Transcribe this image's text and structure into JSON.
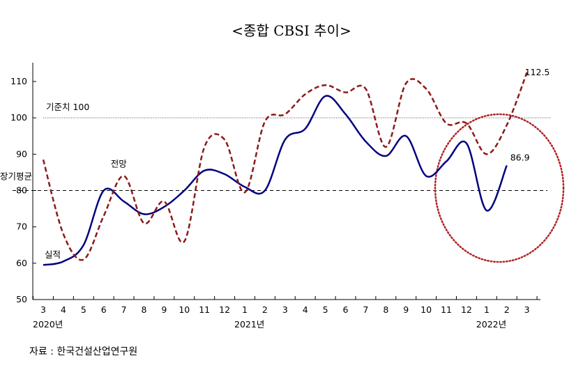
{
  "chart_data": {
    "type": "line",
    "title": "<종합 CBSI 추이>",
    "source": "자료 : 한국건설산업연구원",
    "categories": [
      "3",
      "4",
      "5",
      "6",
      "7",
      "8",
      "9",
      "10",
      "11",
      "12",
      "1",
      "2",
      "3",
      "4",
      "5",
      "6",
      "7",
      "8",
      "9",
      "10",
      "11",
      "12",
      "1",
      "2",
      "3"
    ],
    "year_labels": [
      {
        "index": 0,
        "label": "2020년"
      },
      {
        "index": 10,
        "label": "2021년"
      },
      {
        "index": 22,
        "label": "2022년"
      }
    ],
    "ylim": [
      50,
      110
    ],
    "yticks": [
      50,
      60,
      70,
      80,
      90,
      100,
      110
    ],
    "series": [
      {
        "name": "실적",
        "color": "#000080",
        "style": "solid",
        "values": [
          59.5,
          60.5,
          65,
          80,
          77,
          73.5,
          75.5,
          80,
          85.5,
          84.5,
          81,
          80,
          94,
          97,
          106,
          101,
          93.5,
          89.5,
          95,
          84,
          88,
          93,
          74.5,
          86.9,
          null
        ]
      },
      {
        "name": "전망",
        "color": "#8b1a1a",
        "style": "dashed",
        "values": [
          88.5,
          68,
          61,
          73,
          84,
          71,
          77,
          66,
          92,
          94,
          79.5,
          99,
          101,
          106.5,
          109,
          107,
          108,
          92,
          109.5,
          108,
          98.5,
          98.5,
          90,
          98,
          112.5
        ]
      }
    ],
    "reference_lines": [
      {
        "label": "기준치 100",
        "value": 100,
        "style": "dotted"
      },
      {
        "label": "장기평균",
        "value": 80,
        "style": "dashed"
      }
    ],
    "annotations": [
      {
        "text": "86.9",
        "series": 0,
        "index": 23
      },
      {
        "text": "112.5",
        "series": 1,
        "index": 24
      }
    ],
    "highlight": {
      "shape": "dotted-circle",
      "color": "#b22222",
      "from_index": 20,
      "to_index": 24
    }
  }
}
